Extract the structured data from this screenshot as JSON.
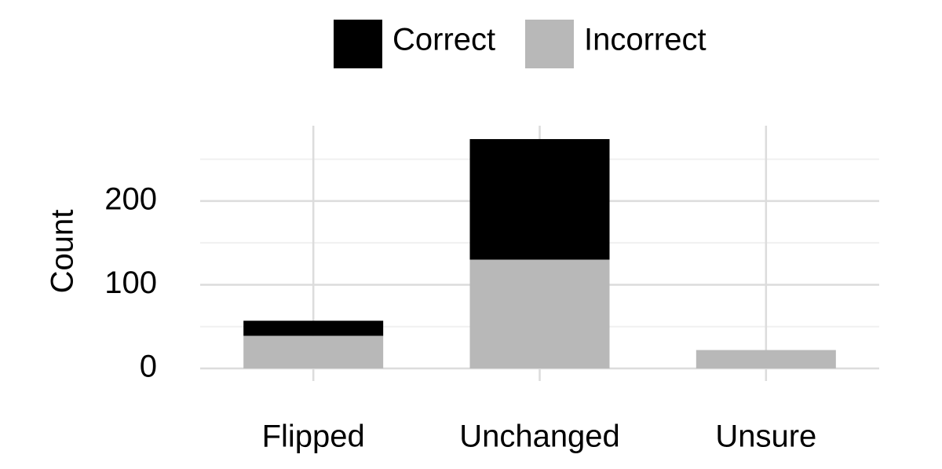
{
  "chart_data": {
    "type": "stacked_bar",
    "categories": [
      "Flipped",
      "Unchanged",
      "Unsure"
    ],
    "series": [
      {
        "name": "Correct",
        "color": "#000000",
        "values": [
          18,
          144,
          0
        ]
      },
      {
        "name": "Incorrect",
        "color": "#b8b8b8",
        "values": [
          39,
          130,
          22
        ]
      }
    ],
    "ylabel": "Count",
    "ylim": [
      -15,
      290
    ],
    "yticks": [
      0,
      100,
      200
    ],
    "yminor_ticks": [
      50,
      150,
      250
    ],
    "grid": true,
    "legend": "top"
  }
}
